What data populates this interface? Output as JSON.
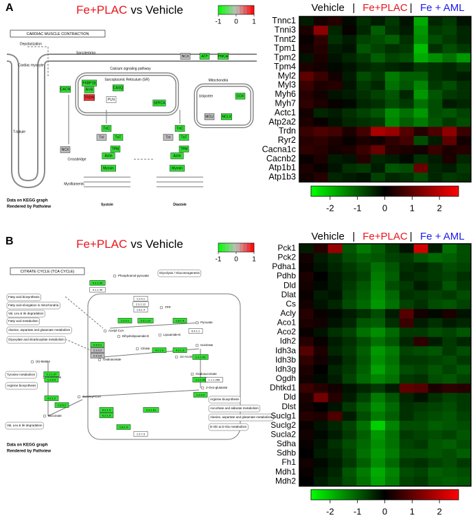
{
  "panels": [
    {
      "label": "A",
      "title": [
        {
          "text": "Fe+PLAC",
          "color": "#e8141b"
        },
        {
          "text": "vs Vehicle",
          "color": "#000000"
        }
      ],
      "legend": {
        "lim": [
          -1,
          1
        ],
        "ticks": [
          -1,
          0,
          1
        ],
        "colors": [
          "#00ff00",
          "#bebebe",
          "#ff0000"
        ]
      },
      "diagram": {
        "title": "CARDIAC MUSCLE CONTRACTION",
        "labels": [
          "Depolarization",
          "Sarcolemma",
          "Cardiac myocyte",
          "Calcium signaling pathway",
          "Sarcoplasmic Reticulum (SR)",
          "Mitochondria",
          "T-tubule",
          "Crossbridge",
          "Myofilaments",
          "Systole",
          "Diastole",
          "Uniporter"
        ],
        "nodes": [
          {
            "label": "CACN",
            "color": "#33dd33"
          },
          {
            "label": "NCX",
            "color": "#bebebe"
          },
          {
            "label": "FKBP1B",
            "color": "#33dd33"
          },
          {
            "label": "RYR",
            "color": "#33dd33"
          },
          {
            "label": "TRDN",
            "color": "#ee3333"
          },
          {
            "label": "CASQ",
            "color": "#33dd33"
          },
          {
            "label": "PLN",
            "color": "#ffffff"
          },
          {
            "label": "SERCA",
            "color": "#33dd33"
          },
          {
            "label": "NCX",
            "color": "#bebebe"
          },
          {
            "label": "ATP",
            "color": "#33dd33"
          },
          {
            "label": "PMCA",
            "color": "#33dd33"
          },
          {
            "label": "COX",
            "color": "#33dd33"
          },
          {
            "label": "MCU",
            "color": "#bebebe"
          },
          {
            "label": "NCLX",
            "color": "#33dd33"
          },
          {
            "label": "TnC",
            "color": "#33dd33"
          },
          {
            "label": "TnI",
            "color": "#bebebe"
          },
          {
            "label": "TnT",
            "color": "#33dd33"
          },
          {
            "label": "TPM",
            "color": "#33dd33"
          },
          {
            "label": "Actin",
            "color": "#33dd33"
          },
          {
            "label": "Myosin",
            "color": "#33dd33"
          },
          {
            "label": "TnC",
            "color": "#33dd33"
          },
          {
            "label": "TnI",
            "color": "#bebebe"
          },
          {
            "label": "TnT",
            "color": "#33dd33"
          },
          {
            "label": "TPM",
            "color": "#33dd33"
          },
          {
            "label": "Actin",
            "color": "#33dd33"
          },
          {
            "label": "Myosin",
            "color": "#33dd33"
          }
        ],
        "note": [
          "Data on KEGG graph",
          "Rendered by Pathview"
        ]
      }
    },
    {
      "label": "B",
      "title": [
        {
          "text": "Fe+PLAC",
          "color": "#e8141b"
        },
        {
          "text": "vs Vehicle",
          "color": "#000000"
        }
      ],
      "legend": {
        "lim": [
          -1,
          1
        ],
        "ticks": [
          -1,
          0,
          1
        ],
        "colors": [
          "#00ff00",
          "#bebebe",
          "#ff0000"
        ]
      },
      "diagram": {
        "title": "CITRATE CYCLE (TCA CYCLE)",
        "boxes": [
          "Fatty acid biosynthesis",
          "Fatty acid elongation in mitochondria",
          "Val, Leu & Ile degradation",
          "Fatty acid metabolism",
          "Alanine, aspartate and glutamate metabolism",
          "Glyoxylate and dicarboxylate metabolism",
          "Tyrosine metabolism",
          "Arginine biosynthesis",
          "Val, Leu & Ile degradation",
          "Glycolysis / Gluconeogenesis",
          "Arginine biosynthesis",
          "Ascorbate and aldarate metabolism",
          "Alanine, aspartate and glutamate metabolism",
          "D-Gln & D-Glu metabolism"
        ],
        "labels": [
          "Phosphoenol-pyruvate",
          "Pyruvate",
          "Acetyl-CoA",
          "Oxaloacetate",
          "Citrate",
          "cis-Aconitate",
          "Isocitrate",
          "Oxalosuccinate",
          "2-Oxo-glutarate",
          "Succinyl-CoA",
          "Succinate",
          "Fumarate",
          "(S)-Malate",
          "TPP",
          "Lipoamide-E",
          "Dihydrolipoamide-E"
        ],
        "nodes": [
          {
            "label": "4.1.1.32",
            "color": "#33dd33"
          },
          {
            "label": "4.1.1.49",
            "color": "#ffffff"
          },
          {
            "label": "1.2.4.1",
            "color": "#ffffff"
          },
          {
            "label": "2.3.1.12",
            "color": "#ffffff"
          },
          {
            "label": "1.8.1.4",
            "color": "#ffffff"
          },
          {
            "label": "1.2.4.1",
            "color": "#33dd33"
          },
          {
            "label": "2.3.1.12",
            "color": "#33dd33"
          },
          {
            "label": "1.8.1.4",
            "color": "#33dd33"
          },
          {
            "label": "6.4.1.1",
            "color": "#ffffff"
          },
          {
            "label": "2.3.3.1",
            "color": "#33dd33"
          },
          {
            "label": "2.3.3.3",
            "color": "#bebebe"
          },
          {
            "label": "2.3.3.8",
            "color": "#bebebe"
          },
          {
            "label": "4.2.1.3",
            "color": "#33dd33"
          },
          {
            "label": "4.2.1.3",
            "color": "#33dd33"
          },
          {
            "label": "1.1.1.41",
            "color": "#33dd33"
          },
          {
            "label": "1.1.1.42",
            "color": "#33dd33"
          },
          {
            "label": "1.1.1.286",
            "color": "#ffffff"
          },
          {
            "label": "1.2.4.2",
            "color": "#33dd33"
          },
          {
            "label": "1.1.1.37",
            "color": "#33dd33"
          },
          {
            "label": "1.1.5.4",
            "color": "#33dd33"
          },
          {
            "label": "4.2.1.2",
            "color": "#33dd33"
          },
          {
            "label": "1.3.5.1",
            "color": "#33dd33"
          },
          {
            "label": "6.2.1.4",
            "color": "#33dd33"
          },
          {
            "label": "6.2.1.5",
            "color": "#33dd33"
          },
          {
            "label": "2.3.1.61",
            "color": "#33dd33"
          },
          {
            "label": "1.8.1.4",
            "color": "#33dd33"
          },
          {
            "label": "1.2.7.3",
            "color": "#ffffff"
          }
        ],
        "note": [
          "Data on KEGG graph",
          "Rendered by Pathview"
        ]
      }
    }
  ],
  "chart_data": [
    {
      "type": "heatmap",
      "groups": [
        {
          "name": "Vehicle",
          "color": "#000000"
        },
        {
          "name": "Fe+PLAC",
          "color": "#e8141b"
        },
        {
          "name": "Fe + AML",
          "color": "#1a1aee"
        }
      ],
      "separator": "|",
      "rows": [
        "Tnnc1",
        "Tnni3",
        "Tnnt2",
        "Tpm1",
        "Tpm2",
        "Tpm4",
        "Myl2",
        "Myl3",
        "Myh6",
        "Myh7",
        "Actc1",
        "Atp2a2",
        "Trdn",
        "Ryr2",
        "Cacna1c",
        "Cacnb2",
        "Atp1b1",
        "Atp1b3"
      ],
      "values": [
        [
          -0.3,
          0.2,
          0.4,
          -0.1,
          -0.5,
          -0.3,
          -0.6,
          -0.2,
          -1.8,
          -0.4,
          -0.6,
          -0.2
        ],
        [
          0.3,
          1.5,
          -0.4,
          0.1,
          -0.4,
          -1.0,
          -0.5,
          -0.3,
          -1.6,
          -0.6,
          -0.7,
          -0.4
        ],
        [
          0.1,
          0.5,
          -0.5,
          -0.3,
          -0.7,
          -0.8,
          -1.0,
          -0.5,
          -1.5,
          -0.8,
          -0.6,
          -0.4
        ],
        [
          0.2,
          0.4,
          -0.3,
          -0.2,
          -0.9,
          -0.7,
          -0.5,
          -0.6,
          -2.0,
          -0.5,
          -0.8,
          -0.6
        ],
        [
          -0.2,
          0.3,
          -0.2,
          -0.4,
          -0.6,
          -1.0,
          -0.7,
          -0.8,
          -1.8,
          -1.5,
          -1.2,
          -1.6
        ],
        [
          0.3,
          0.2,
          -0.1,
          -0.2,
          -0.4,
          -0.5,
          -0.4,
          -0.3,
          -0.6,
          -0.5,
          -0.4,
          -0.6
        ],
        [
          1.0,
          0.6,
          0.2,
          -0.3,
          -0.8,
          -0.6,
          -1.3,
          -1.0,
          -1.0,
          -0.5,
          -0.4,
          -0.3
        ],
        [
          0.6,
          0.3,
          0.4,
          -0.2,
          -0.6,
          -0.4,
          -1.2,
          -0.9,
          -1.4,
          -0.6,
          -0.8,
          -0.5
        ],
        [
          0.4,
          0.2,
          -0.2,
          -0.3,
          -0.5,
          -0.7,
          -0.9,
          -0.4,
          -1.6,
          -0.9,
          -0.6,
          -0.5
        ],
        [
          0.5,
          0.3,
          0.1,
          -0.1,
          -0.4,
          -0.5,
          -0.8,
          -0.6,
          -1.2,
          -0.8,
          -0.3,
          -0.4
        ],
        [
          0.2,
          -0.4,
          -0.3,
          -0.5,
          -0.7,
          -0.9,
          -1.5,
          -1.2,
          -1.6,
          -0.8,
          -0.9,
          -0.7
        ],
        [
          0.3,
          0.1,
          -0.2,
          -0.4,
          -0.5,
          -0.6,
          -1.4,
          -1.0,
          -1.3,
          -0.9,
          -0.6,
          -0.8
        ],
        [
          0.6,
          0.8,
          0.7,
          0.3,
          0.7,
          1.8,
          1.6,
          0.9,
          0.4,
          0.8,
          1.5,
          0.6
        ],
        [
          0.4,
          0.5,
          0.3,
          0.1,
          0.3,
          0.2,
          0.5,
          0.7,
          -0.8,
          -0.3,
          1.0,
          0.2
        ],
        [
          0.5,
          0.4,
          0.2,
          0.3,
          0.6,
          1.1,
          0.4,
          0.3,
          0.2,
          0.6,
          0.3,
          0.4
        ],
        [
          0.1,
          0.3,
          -0.3,
          -0.2,
          0.4,
          -0.4,
          -0.3,
          -0.1,
          -0.5,
          -0.3,
          0.3,
          -0.4
        ],
        [
          0.3,
          0.1,
          -0.2,
          -0.5,
          -0.6,
          -0.3,
          -0.9,
          -0.8,
          1.1,
          -0.4,
          -0.3,
          -0.6
        ],
        [
          0.2,
          0.4,
          -0.4,
          -0.3,
          -0.2,
          -0.7,
          -0.4,
          -0.5,
          -0.8,
          -0.4,
          -0.6,
          -0.5
        ]
      ],
      "colors": {
        "low": "#00ff00",
        "mid": "#000000",
        "high": "#ff0000"
      },
      "colorbar": {
        "lim": [
          -2.7,
          2.7
        ],
        "ticks": [
          -2,
          -1,
          0,
          1,
          2
        ]
      }
    },
    {
      "type": "heatmap",
      "groups": [
        {
          "name": "Vehicle",
          "color": "#000000"
        },
        {
          "name": "Fe+PLAC",
          "color": "#e8141b"
        },
        {
          "name": "Fe + AML",
          "color": "#1a1aee"
        }
      ],
      "separator": "|",
      "rows": [
        "Pck1",
        "Pck2",
        "Pdha1",
        "Pdhb",
        "Dld",
        "Dlat",
        "Cs",
        "Acly",
        "Aco1",
        "Aco2",
        "Idh2",
        "Idh3a",
        "Idh3b",
        "Idh3g",
        "Ogdh",
        "Dhtkd1",
        "Dld",
        "Dlst",
        "Suclg1",
        "Suclg2",
        "Sucla2",
        "Sdha",
        "Sdhb",
        "Fh1",
        "Mdh1",
        "Mdh2"
      ],
      "values": [
        [
          -0.3,
          0.4,
          1.6,
          -0.9,
          -1.3,
          -1.0,
          -0.6,
          -0.2,
          2.2,
          -0.3,
          -1.2,
          -0.8
        ],
        [
          0.2,
          -0.3,
          -0.5,
          -0.8,
          -1.0,
          -0.9,
          -0.7,
          -0.6,
          -0.9,
          -1.1,
          -1.0,
          -0.8
        ],
        [
          0.1,
          -0.2,
          -0.4,
          -0.6,
          -0.8,
          -1.2,
          -0.9,
          -0.5,
          -0.4,
          -0.6,
          -0.8,
          -0.7
        ],
        [
          0.3,
          0.0,
          -0.3,
          -0.5,
          -0.7,
          -1.3,
          -1.0,
          -0.4,
          -0.5,
          -0.6,
          -0.7,
          -0.5
        ],
        [
          0.2,
          -0.1,
          -0.3,
          -0.6,
          -0.9,
          -1.4,
          -0.8,
          -0.6,
          -0.3,
          -0.5,
          -0.9,
          -0.6
        ],
        [
          0.1,
          -0.3,
          -0.2,
          -0.7,
          -1.0,
          -1.5,
          -1.1,
          -0.5,
          -0.6,
          -0.7,
          -0.6,
          -0.8
        ],
        [
          0.2,
          -0.2,
          -0.4,
          -0.8,
          -1.1,
          -1.6,
          -1.2,
          -0.7,
          -0.5,
          -0.8,
          -0.9,
          -0.7
        ],
        [
          0.4,
          0.1,
          -0.1,
          -0.3,
          -0.5,
          -0.8,
          -0.3,
          0.9,
          0.2,
          -0.1,
          0.3,
          -0.2
        ],
        [
          0.3,
          0.2,
          -0.2,
          -0.4,
          -0.9,
          -1.0,
          -0.5,
          0.6,
          -0.3,
          -0.5,
          -0.3,
          -0.4
        ],
        [
          0.1,
          -0.2,
          -0.5,
          -0.7,
          -1.2,
          -1.5,
          -1.1,
          -0.6,
          -0.6,
          -0.8,
          -0.7,
          -0.9
        ],
        [
          0.4,
          0.1,
          -0.3,
          -0.5,
          -0.8,
          -1.2,
          -0.9,
          -0.4,
          0.5,
          -0.3,
          -0.6,
          -0.4
        ],
        [
          0.9,
          0.3,
          -0.4,
          -0.6,
          -1.0,
          -1.6,
          -1.3,
          -0.7,
          -0.8,
          -0.9,
          -0.6,
          -0.8
        ],
        [
          0.5,
          0.2,
          -0.2,
          -0.5,
          -0.9,
          -1.5,
          -1.2,
          -0.6,
          -0.6,
          -0.7,
          -0.8,
          -0.6
        ],
        [
          0.3,
          0.0,
          -0.4,
          -0.6,
          -1.0,
          -1.7,
          -1.3,
          -0.8,
          -0.7,
          -0.9,
          -0.7,
          -0.9
        ],
        [
          0.2,
          -0.1,
          -0.3,
          -0.7,
          -1.1,
          -1.4,
          -1.2,
          -0.6,
          -0.5,
          -0.8,
          -0.9,
          -0.7
        ],
        [
          0.6,
          0.4,
          0.2,
          -0.2,
          -0.4,
          -0.6,
          -0.3,
          1.0,
          0.9,
          0.3,
          0.5,
          0.4
        ],
        [
          0.3,
          1.2,
          0.4,
          -0.3,
          -0.7,
          -1.3,
          -0.9,
          -0.4,
          -0.2,
          -0.5,
          -0.7,
          -0.6
        ],
        [
          0.2,
          0.0,
          -0.2,
          -0.6,
          -1.0,
          -1.5,
          -1.1,
          -0.5,
          -0.6,
          -0.7,
          -0.8,
          -0.6
        ],
        [
          0.4,
          0.3,
          0.8,
          -0.3,
          -0.8,
          -1.3,
          -1.0,
          -0.5,
          -0.7,
          -0.8,
          -0.9,
          -0.7
        ],
        [
          0.1,
          -0.2,
          -0.4,
          -0.7,
          -1.2,
          -2.2,
          -1.4,
          -0.8,
          -0.8,
          -1.0,
          -0.9,
          -0.8
        ],
        [
          0.2,
          -0.1,
          -0.3,
          -0.6,
          -1.0,
          -1.6,
          -1.2,
          -0.6,
          -0.7,
          -0.8,
          -0.7,
          -0.9
        ],
        [
          0.1,
          -0.2,
          -0.5,
          -0.8,
          -1.1,
          -1.5,
          -1.2,
          -0.7,
          -0.6,
          -0.9,
          -1.0,
          -0.8
        ],
        [
          0.0,
          -0.3,
          -0.4,
          -0.7,
          -1.2,
          -1.6,
          -1.3,
          -0.8,
          -0.8,
          -0.9,
          -0.8,
          -1.0
        ],
        [
          0.2,
          -0.1,
          -0.3,
          -0.6,
          -1.0,
          -1.5,
          -1.1,
          -0.6,
          -0.5,
          -0.7,
          -0.8,
          -0.6
        ],
        [
          0.1,
          -0.2,
          -0.4,
          -0.9,
          -1.3,
          -1.8,
          -1.4,
          -0.8,
          -0.7,
          -1.0,
          -0.9,
          -0.8
        ],
        [
          0.0,
          -0.3,
          -0.5,
          -0.8,
          -1.2,
          -1.7,
          -1.3,
          -0.7,
          -0.6,
          -0.9,
          -1.0,
          -0.9
        ]
      ],
      "colors": {
        "low": "#00ff00",
        "mid": "#000000",
        "high": "#ff0000"
      },
      "colorbar": {
        "lim": [
          -2.7,
          2.7
        ],
        "ticks": [
          -2,
          -1,
          0,
          1,
          2
        ]
      }
    }
  ]
}
